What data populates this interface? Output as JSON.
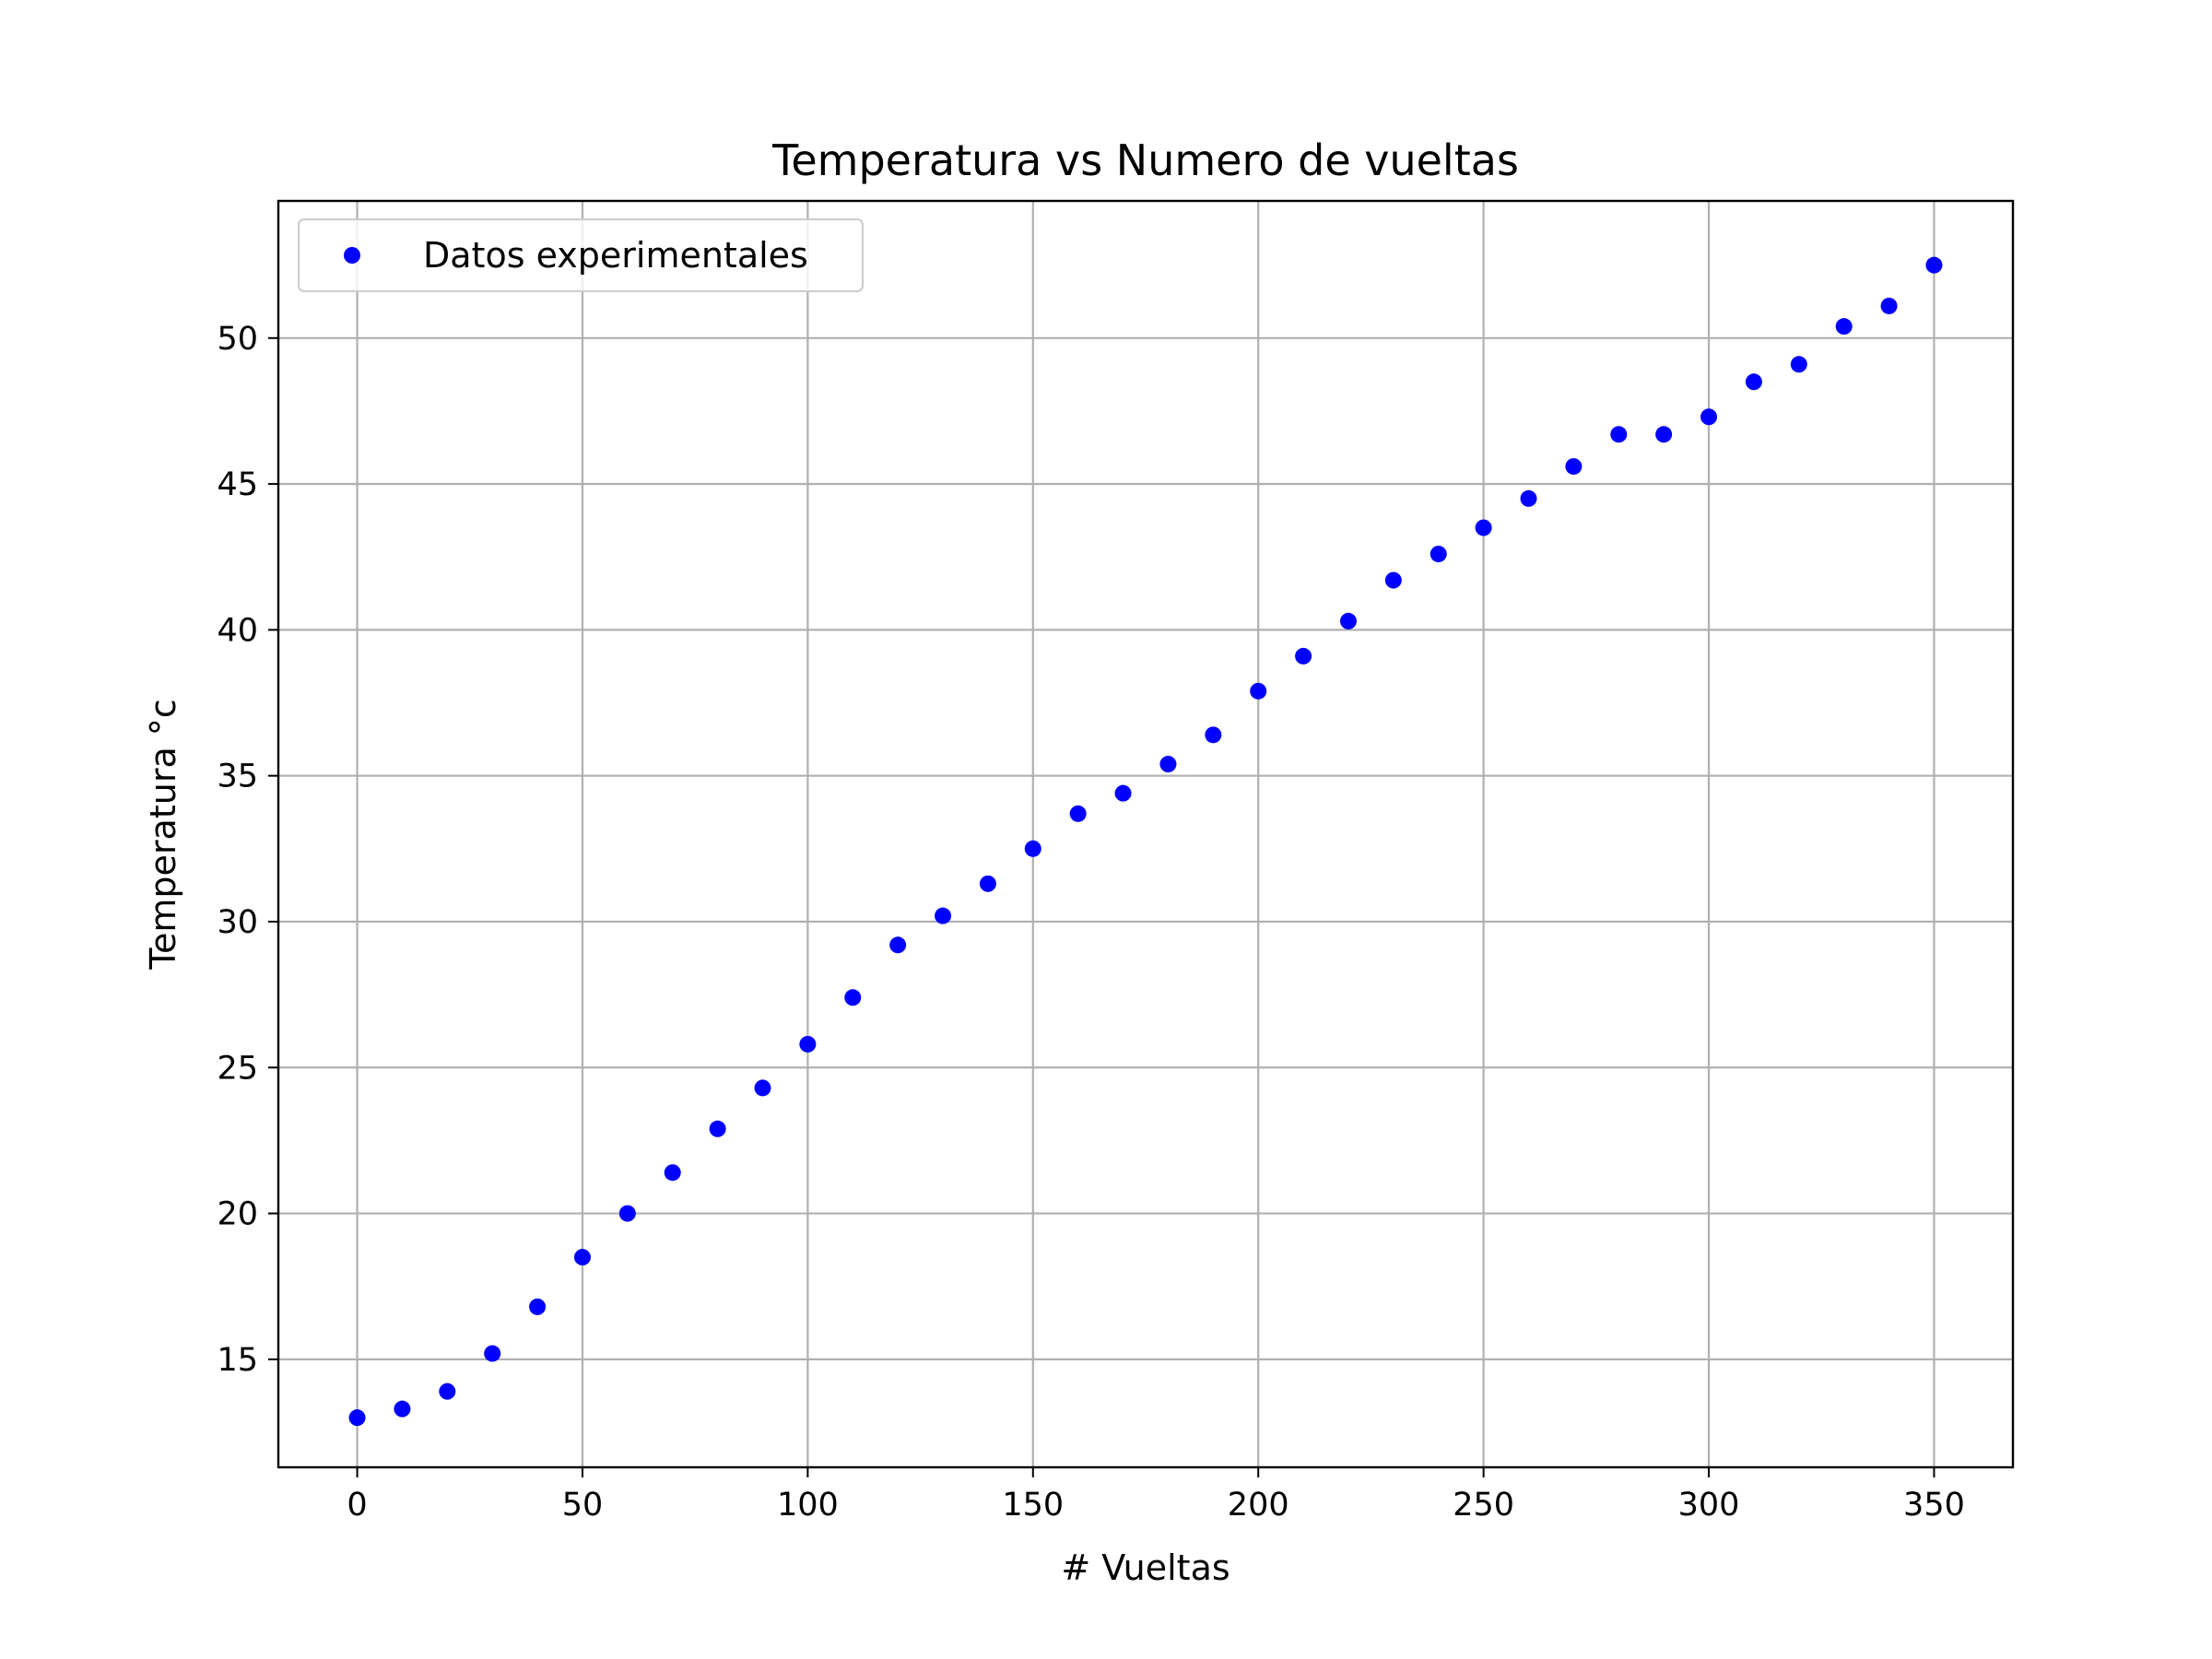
{
  "chart_data": {
    "type": "scatter",
    "title": "Temperatura vs Numero de vueltas",
    "xlabel": "# Vueltas",
    "ylabel": "Temperatura °c",
    "xlim": [
      -17.5,
      367.5
    ],
    "ylim": [
      11.3,
      54.7
    ],
    "xticks": [
      0,
      50,
      100,
      150,
      200,
      250,
      300,
      350
    ],
    "yticks": [
      15,
      20,
      25,
      30,
      35,
      40,
      45,
      50
    ],
    "grid": true,
    "legend_position": "upper-left",
    "marker_color": "#0000ff",
    "series": [
      {
        "name": "Datos experimentales",
        "x": [
          0,
          10,
          20,
          30,
          40,
          50,
          60,
          70,
          80,
          90,
          100,
          110,
          120,
          130,
          140,
          150,
          160,
          170,
          180,
          190,
          200,
          210,
          220,
          230,
          240,
          250,
          260,
          270,
          280,
          290,
          300,
          310,
          320,
          330,
          340,
          350
        ],
        "y": [
          13.0,
          13.3,
          13.9,
          15.2,
          16.8,
          18.5,
          20.0,
          21.4,
          22.9,
          24.3,
          25.8,
          27.4,
          29.2,
          30.2,
          31.3,
          32.5,
          33.7,
          34.4,
          35.4,
          36.4,
          37.9,
          39.1,
          40.3,
          41.7,
          42.6,
          43.5,
          44.5,
          45.6,
          46.7,
          46.7,
          47.3,
          48.5,
          49.1,
          50.4,
          51.1,
          52.5
        ]
      }
    ]
  }
}
